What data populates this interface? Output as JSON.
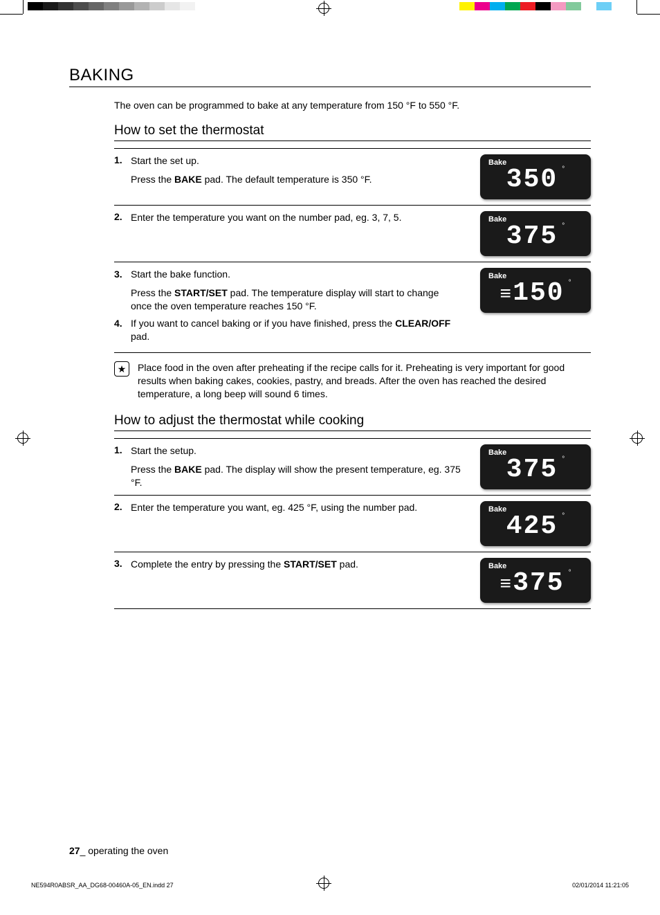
{
  "printer_marks": {
    "gray_swatches": [
      "#000000",
      "#1a1a1a",
      "#333333",
      "#4d4d4d",
      "#666666",
      "#808080",
      "#999999",
      "#b3b3b3",
      "#cccccc",
      "#e6e6e6",
      "#f2f2f2",
      "#ffffff"
    ],
    "color_swatches": [
      "#fff200",
      "#ec008c",
      "#00aeef",
      "#00a651",
      "#ed1c24",
      "#000000",
      "#f49ac1",
      "#82ca9c",
      "#ffffff",
      "#6dcff6"
    ]
  },
  "section_title": "BAKING",
  "intro": "The oven can be programmed to bake at any temperature from 150 °F to 550 °F.",
  "sub1_title": "How to set the thermostat",
  "s1": {
    "num": "1",
    "lead": "Start the set up.",
    "body_pre": "Press the ",
    "body_bold": "BAKE",
    "body_post": " pad. The default temperature is 350 °F.",
    "display_label": "Bake",
    "display_value": "350"
  },
  "s2": {
    "num": "2",
    "body": "Enter the temperature you want on the number pad, eg. 3, 7, 5.",
    "display_label": "Bake",
    "display_value": "375"
  },
  "s3": {
    "num": "3",
    "lead": "Start the bake function.",
    "body_pre": "Press the ",
    "body_bold": "START/SET",
    "body_post": " pad. The temperature display will start to change once the oven temperature reaches 150 °F.",
    "display_label": "Bake",
    "display_prefix": "≡",
    "display_value": "150"
  },
  "s4": {
    "num": "4",
    "body_pre": "If you want to cancel baking or if you have finished, press the ",
    "body_bold": "CLEAR/OFF",
    "body_post": " pad."
  },
  "tip": {
    "icon_glyph": "★",
    "text": "Place food in the oven after preheating if the recipe calls for it. Preheating is very important for good results when baking cakes, cookies, pastry, and breads. After the oven has reached the desired temperature, a long beep will sound 6 times."
  },
  "sub2_title": "How to adjust the thermostat while cooking",
  "a1": {
    "num": "1",
    "lead": "Start the setup.",
    "body_pre": "Press the ",
    "body_bold": "BAKE",
    "body_post": " pad. The display will show the present temperature, eg. 375 °F.",
    "display_label": "Bake",
    "display_value": "375"
  },
  "a2": {
    "num": "2",
    "body": "Enter the temperature you want, eg. 425 °F, using the number pad.",
    "display_label": "Bake",
    "display_value": "425"
  },
  "a3": {
    "num": "3",
    "body_pre": "Complete the entry by pressing the ",
    "body_bold": "START/SET",
    "body_post": " pad.",
    "display_label": "Bake",
    "display_prefix": "≡",
    "display_value": "375"
  },
  "footer": {
    "page_num": "27",
    "sep": "_ ",
    "label": "operating the oven"
  },
  "slug": {
    "file": "NE594R0ABSR_AA_DG68-00460A-05_EN.indd   27",
    "date": "02/01/2014   11:21:05"
  }
}
